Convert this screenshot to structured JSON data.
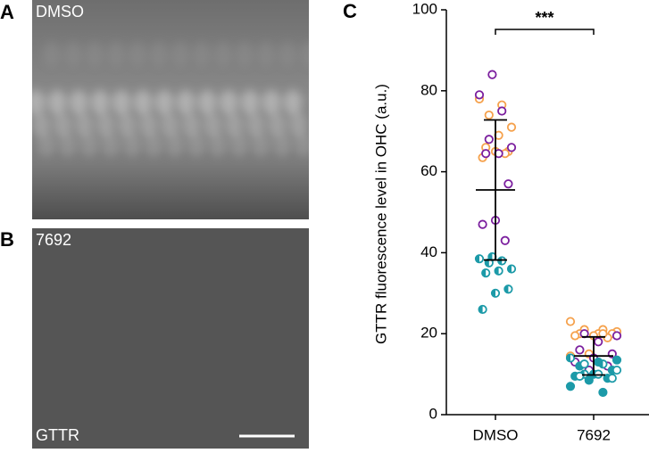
{
  "panels": [
    {
      "label": "A",
      "caption": "DMSO"
    },
    {
      "label": "B",
      "caption": "7692",
      "stain": "GTTR"
    }
  ],
  "chart_data": {
    "type": "scatter",
    "panel_label": "C",
    "ylabel": "GTTR fluorescence level in OHC (a.u.)",
    "categories": [
      "DMSO",
      "7692"
    ],
    "ylim": [
      0,
      100
    ],
    "yticks": [
      0,
      20,
      40,
      60,
      80,
      100
    ],
    "significance": "***",
    "series": [
      {
        "color": "#f5a14c",
        "marker": "open",
        "values": [
          [
            78,
            76.5,
            74,
            71,
            69,
            66,
            65,
            65,
            63.5,
            64.5
          ],
          [
            23,
            21,
            21,
            20.5,
            20,
            20,
            20,
            19.5,
            19.5,
            19,
            15,
            14.5,
            20
          ]
        ]
      },
      {
        "color": "#7b1f9e",
        "marker": "open",
        "values": [
          [
            84,
            79,
            75,
            68,
            66,
            64.5,
            64.5,
            57,
            48,
            47,
            43
          ],
          [
            20,
            19.5,
            18,
            16,
            15,
            14,
            13,
            12,
            11
          ]
        ]
      },
      {
        "color": "#1c9aa8",
        "marker": "half",
        "values": [
          [
            39,
            38.5,
            38,
            37.5,
            36,
            35.5,
            35,
            31,
            30,
            26
          ],
          [
            14,
            12.5,
            10
          ]
        ]
      },
      {
        "color": "#1c9aa8",
        "marker": "filled",
        "values": [
          [],
          [
            13.5,
            13,
            12,
            11,
            10,
            9.5,
            9,
            8.5,
            7,
            5.5
          ]
        ]
      },
      {
        "color": "#1c9aa8",
        "marker": "open",
        "values": [
          [],
          [
            12.5,
            11,
            10,
            9.5,
            9
          ]
        ]
      }
    ],
    "summary": [
      {
        "mean": 55.5,
        "sd": 17.3
      },
      {
        "mean": 14.5,
        "sd": 4.7
      }
    ]
  }
}
